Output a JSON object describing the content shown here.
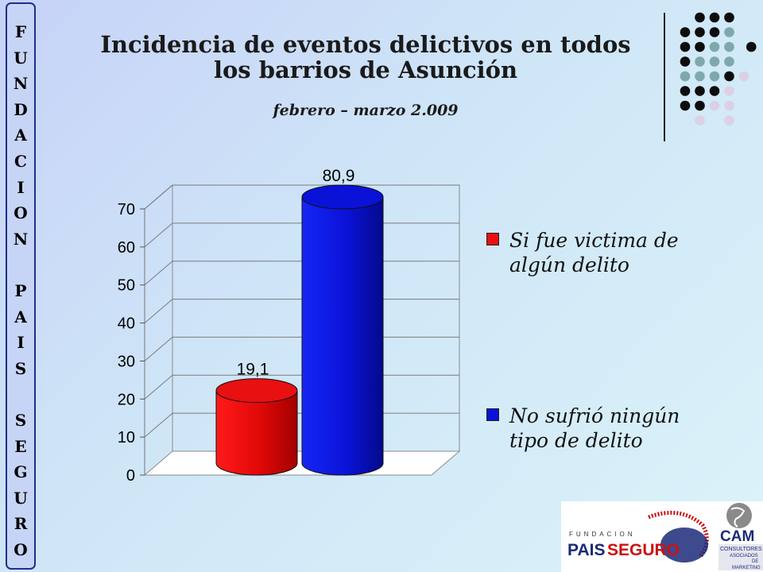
{
  "sidebar": {
    "letters": [
      "F",
      "U",
      "N",
      "D",
      "A",
      "C",
      "I",
      "O",
      "N",
      "",
      "P",
      "A",
      "I",
      "S",
      "",
      "S",
      "E",
      "G",
      "U",
      "R",
      "O"
    ]
  },
  "header": {
    "title_line1": "Incidencia de eventos delictivos en todos",
    "title_line2": "los barrios de Asunción",
    "subtitle": "febrero – marzo 2.009"
  },
  "colors": {
    "series1": "#e81010",
    "series2": "#0a12d8",
    "dot_black": "#0d0d0d",
    "dot_teal": "#7ea9aa",
    "dot_pink": "#dcd0e4"
  },
  "chart_data": {
    "type": "bar",
    "style": "3d-cylinder",
    "ylim": [
      0,
      70
    ],
    "yticks": [
      "0",
      "10",
      "20",
      "30",
      "40",
      "50",
      "60",
      "70"
    ],
    "series": [
      {
        "name": "Si fue victima de algún delito",
        "value": 19.1,
        "label": "19,1",
        "color": "#e81010"
      },
      {
        "name": "No sufrió ningún tipo de delito",
        "value": 80.9,
        "label": "80,9",
        "color": "#0a12d8"
      }
    ],
    "grid": true,
    "legend_position": "right"
  },
  "legend": [
    {
      "line1": "Si fue victima de",
      "line2": "algún delito"
    },
    {
      "line1": "No sufrió ningún",
      "line2": "tipo de delito"
    }
  ],
  "logos": {
    "fundacion_small": "FUNDACION",
    "pais": "PAIS",
    "seguro": "SEGURO",
    "cam": "CAM",
    "cam_lines": [
      "CONSULTORES",
      "ASOCIADOS",
      "DE",
      "MARKETING"
    ]
  }
}
